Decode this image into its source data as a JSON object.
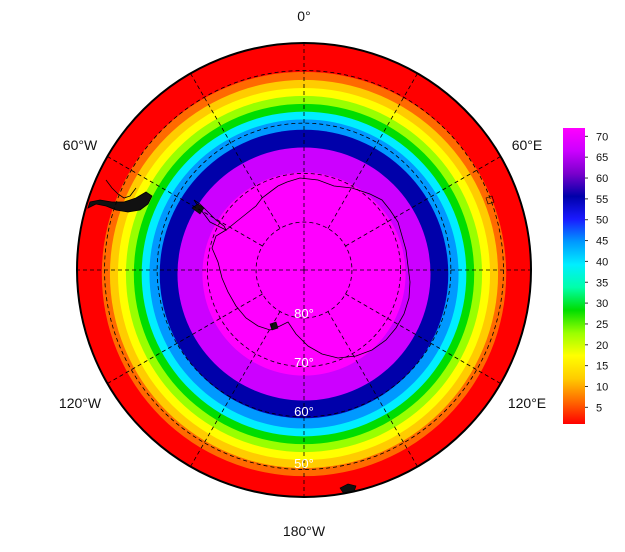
{
  "map": {
    "projection": "south-polar-stereographic",
    "variable_field": "sea ice / polar field values",
    "longitude_labels": [
      {
        "lon": 0,
        "text": "0°"
      },
      {
        "lon": -60,
        "text": "60°W"
      },
      {
        "lon": 60,
        "text": "60°E"
      },
      {
        "lon": -120,
        "text": "120°W"
      },
      {
        "lon": 120,
        "text": "120°E"
      },
      {
        "lon": 180,
        "text": "180°W"
      }
    ],
    "latitude_labels": [
      {
        "lat": -80,
        "text": "80°"
      },
      {
        "lat": -70,
        "text": "70°"
      },
      {
        "lat": -60,
        "text": "60°"
      },
      {
        "lat": -50,
        "text": "50°"
      }
    ],
    "graticule_latitudes": [
      -80,
      -70,
      -60,
      -50
    ],
    "graticule_longitudes": [
      0,
      30,
      60,
      90,
      120,
      150,
      180,
      210,
      240,
      270,
      300,
      330
    ],
    "edge_latitude": -45,
    "field_bands": [
      {
        "lat_outer": -45,
        "lat_inner": -49.5,
        "value": 2
      },
      {
        "lat_outer": -49.5,
        "lat_inner": -51,
        "value": 7
      },
      {
        "lat_outer": -51,
        "lat_inner": -52.5,
        "value": 12
      },
      {
        "lat_outer": -52.5,
        "lat_inner": -54,
        "value": 17
      },
      {
        "lat_outer": -54,
        "lat_inner": -55.5,
        "value": 23
      },
      {
        "lat_outer": -55.5,
        "lat_inner": -57,
        "value": 30
      },
      {
        "lat_outer": -57,
        "lat_inner": -58.5,
        "value": 38
      },
      {
        "lat_outer": -58.5,
        "lat_inner": -60.5,
        "value": 46
      },
      {
        "lat_outer": -60.5,
        "lat_inner": -64,
        "value": 55
      },
      {
        "lat_outer": -64,
        "lat_inner": -69,
        "value": 63
      },
      {
        "lat_outer": -69,
        "lat_inner": -90,
        "value": 70
      }
    ]
  },
  "colorbar": {
    "min": 1,
    "max": 72,
    "ticks": [
      "5",
      "10",
      "15",
      "20",
      "25",
      "30",
      "35",
      "40",
      "45",
      "50",
      "55",
      "60",
      "65",
      "70"
    ],
    "tick_values": [
      5,
      10,
      15,
      20,
      25,
      30,
      35,
      40,
      45,
      50,
      55,
      60,
      65,
      70
    ],
    "colors": [
      "#ff0000",
      "#ff6a00",
      "#ffcc00",
      "#ffff00",
      "#99ff00",
      "#00dd00",
      "#00ffaa",
      "#00eeff",
      "#0099ff",
      "#1a1aff",
      "#0000aa",
      "#7a00cc",
      "#cc00ff",
      "#ff00ff"
    ]
  }
}
